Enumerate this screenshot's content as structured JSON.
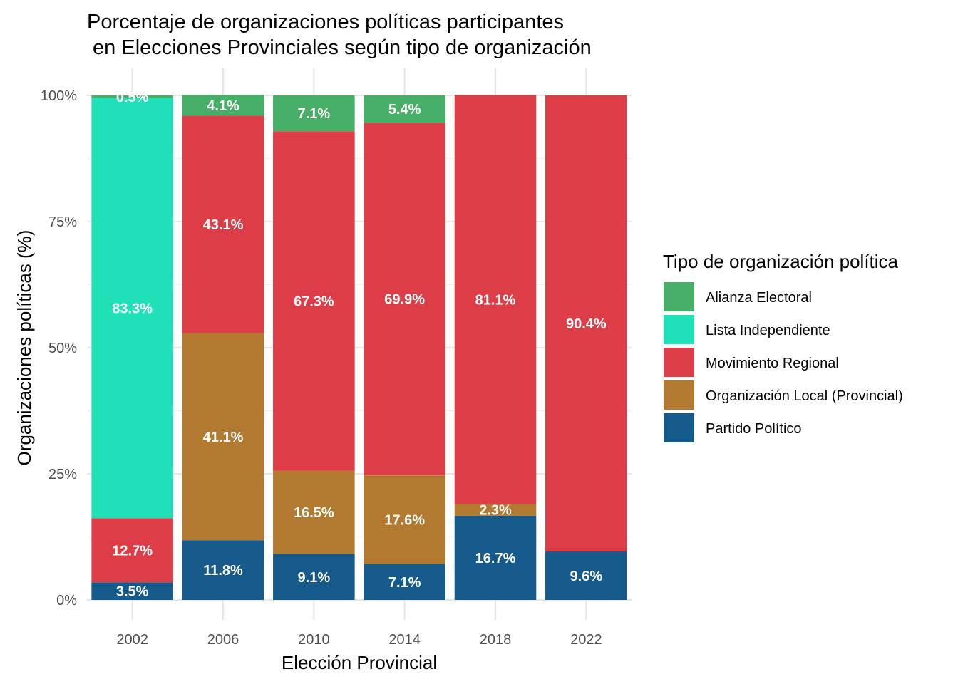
{
  "chart_data": {
    "type": "bar",
    "stacked": true,
    "title_line1": "Porcentaje de organizaciones políticas participantes",
    "title_line2": " en Elecciones Provinciales según tipo de organización",
    "xlabel": "Elección Provincial",
    "ylabel": "Organizaciones políticas (%)",
    "ylim": [
      0,
      100
    ],
    "yticks": [
      {
        "value": 0,
        "label": "0%"
      },
      {
        "value": 25,
        "label": "25%"
      },
      {
        "value": 50,
        "label": "50%"
      },
      {
        "value": 75,
        "label": "75%"
      },
      {
        "value": 100,
        "label": "100%"
      }
    ],
    "grid": true,
    "legend_position": "right",
    "legend_title": "Tipo de organización política",
    "categories": [
      "2002",
      "2006",
      "2010",
      "2014",
      "2018",
      "2022"
    ],
    "series": [
      {
        "name": "Partido Político",
        "color": "#165a8c",
        "values": [
          3.5,
          11.8,
          9.1,
          7.1,
          16.7,
          9.6
        ],
        "labels": [
          "3.5%",
          "11.8%",
          "9.1%",
          "7.1%",
          "16.7%",
          "9.6%"
        ]
      },
      {
        "name": "Organización Local (Provincial)",
        "color": "#b27a30",
        "values": [
          0,
          41.1,
          16.5,
          17.6,
          2.3,
          0
        ],
        "labels": [
          "",
          "41.1%",
          "16.5%",
          "17.6%",
          "2.3%",
          ""
        ]
      },
      {
        "name": "Movimiento Regional",
        "color": "#dc3d47",
        "values": [
          12.7,
          43.1,
          67.3,
          69.9,
          81.1,
          90.4
        ],
        "labels": [
          "12.7%",
          "43.1%",
          "67.3%",
          "69.9%",
          "81.1%",
          "90.4%"
        ]
      },
      {
        "name": "Lista Independiente",
        "color": "#1fe0b7",
        "values": [
          83.3,
          0,
          0,
          0,
          0,
          0
        ],
        "labels": [
          "83.3%",
          "",
          "",
          "",
          "",
          ""
        ]
      },
      {
        "name": "Alianza Electoral",
        "color": "#46ae66",
        "values": [
          0.5,
          4.1,
          7.1,
          5.4,
          0,
          0
        ],
        "labels": [
          "0.5%",
          "4.1%",
          "7.1%",
          "5.4%",
          "",
          ""
        ]
      }
    ],
    "legend_order": [
      "Alianza Electoral",
      "Lista Independiente",
      "Movimiento Regional",
      "Organización Local (Provincial)",
      "Partido Político"
    ]
  }
}
